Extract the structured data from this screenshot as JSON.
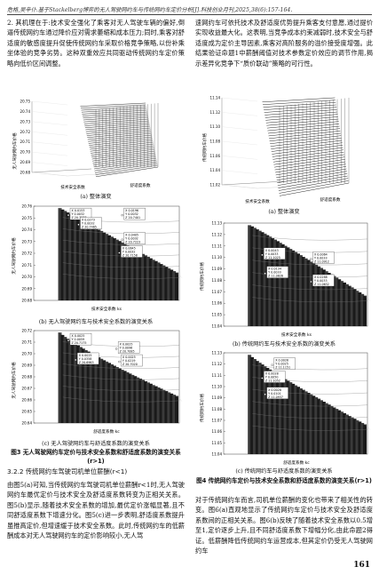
{
  "header": "危格,吴辛仆.基于Stackelberg博弈的无人驾驶网约车与传统网约车定价分析[J].科技创业月刊,2025,38(6):157-164.",
  "left_top_text": "2. 其机理在于:技术安全强化了乘客对无人驾驶车辆的偏好,倒逼传统网约车通过降价应对需求萎缩和成本压力;同时,乘客对舒适度的敏感度提升促使传统网约车采取价格竞争策略,以份补乘坐体验的竞争劣势。这种双重效应共同驱动传统网约车定价策略向低价区间调整。",
  "right_top_text": "速网约车可依托技术及舒适度优势提升乘客支付意愿,通过提价实现收益最大化。这表明,当竞争成本约束减弱时,技术安全与舒适度成为定价主导因素,乘客对高阶服务的溢价接受度增强。此结果验证命题1中薪酬阈值对技术参数定价效应的调节作用,揭示差异化竞争下“质价联动”策略的可行性。",
  "fig3": {
    "a_caption": "(a) 整体演变",
    "b_caption": "(b) 无人驾驶网约车与技术安全系数的演变关系",
    "c_caption": "(c) 无人驾驶网约车与舒适度系数的演变关系",
    "title": "图3 无人驾驶网约车定价与技术安全系数和舒适度系数的演变关系(r>1)",
    "a_ylabel": "无人驾驶网约车价格",
    "a_xlabel1": "技术安全系数",
    "a_xlabel2": "舒适度系数",
    "b_ylabel": "无人驾驶网约车价格",
    "b_xlabel": "技术安全系数 ks",
    "c_ylabel": "无人驾驶网约车价格",
    "c_xlabel": "舒适度系数 kc",
    "a_yticks": [
      "20.75",
      "20.74",
      "20.73",
      "20.72",
      "20.71",
      "20.70",
      "20.69",
      "20.68"
    ],
    "b_yticks": [
      "20.76",
      "20.75",
      "20.74",
      "20.73",
      "20.72",
      "20.71",
      "20.70",
      "20.69",
      "20.68"
    ],
    "c_yticks": [
      "20.72",
      "20.71",
      "20.70",
      "20.69",
      "20.68",
      "20.67",
      "20.66",
      "20.65",
      "20.64"
    ],
    "b_datatips": [
      {
        "x": "X 0.0153",
        "y": "Y 0.0032",
        "z": "Z 20.7377"
      },
      {
        "x": "X 0.0196",
        "y": "Y 0.0032",
        "z": "Z 20.7401"
      },
      {
        "x": "X 0.0273",
        "y": "Y 0.0032",
        "z": "Z 20.7465"
      },
      {
        "x": "X 0.0405",
        "y": "Y 0.0032",
        "z": "Z 20.7223"
      },
      {
        "x": "X 0.0645",
        "y": "Y 0.0032",
        "z": "Z 20.7158"
      }
    ],
    "c_datatips": [
      {
        "x": "X 0.0025",
        "y": "Y 0.0059",
        "z": "Z 20.7175"
      },
      {
        "x": "X 0.0025",
        "y": "Y 0.0096",
        "z": "Z 20.7085"
      },
      {
        "x": "X 0.0025",
        "y": "Y 0.0219",
        "z": "Z 20.7020"
      },
      {
        "x": "X 0.0025",
        "y": "Y 0.0358",
        "z": "Z 20.6963"
      }
    ]
  },
  "fig4": {
    "a_caption": "(a) 整体演变",
    "b_caption": "(b) 传统网约车与技术安全系数的演变关系",
    "c_caption": "(c) 传统网约车与舒适度系数的演变关系",
    "title": "图4 传统网约车定价与技术安全系数和舒适度系数的演变关系(r>1)",
    "a_ylabel": "传统网约车价格",
    "b_ylabel": "传统网约车价格",
    "c_ylabel": "传统网约车价格",
    "a_xlabel1": "技术安全系数",
    "a_xlabel2": "舒适度系数",
    "b_xlabel": "技术安全系数 ks",
    "c_xlabel": "舒适度系数 kc",
    "a_yticks": [
      "11.14",
      "11.12",
      "11.10",
      "11.08",
      "11.06",
      "11.04",
      "11.02"
    ],
    "b_yticks": [
      "11.13",
      "11.12",
      "11.11",
      "11.10",
      "11.09",
      "11.08",
      "11.07",
      "11.06",
      "11.05",
      "11.04"
    ],
    "c_yticks": [
      "11.13",
      "11.12",
      "11.11",
      "11.10",
      "11.09",
      "11.08",
      "11.07",
      "11.06",
      "11.05",
      "11.04"
    ],
    "b_datatips": [
      {
        "x": "X 0.0043",
        "y": "Y 0.0033",
        "z": "Z 11.1025"
      },
      {
        "x": "X 0.0064",
        "y": "Y 0.0033",
        "z": "Z 11.0912"
      },
      {
        "x": "X 0.0134",
        "y": "Y 0.0033",
        "z": "Z 11.0826"
      },
      {
        "x": "X 0.0288",
        "y": "Y 0.0033",
        "z": "Z 11.0632"
      }
    ],
    "c_datatips": [
      {
        "x": "X 0.0028",
        "y": "Y 0.0025",
        "z": "Z 11.1151"
      },
      {
        "x": "X 0.0028",
        "y": "Y 0.0050",
        "z": "Z 11.1052"
      },
      {
        "x": "X 0.0028",
        "y": "Y 0.0101",
        "z": "Z 11.0937"
      }
    ]
  },
  "section_heading": "3.2.2 传统网约车驾驶司机单位薪酬(r<1)",
  "left_bottom_text": "由图5(a)可知,当传统网约车驾驶司机单位薪酬r<1时,无人驾驶网约车最优定价与技术安全及舒适度系数转变为正相关关系。图5(b)显示,随着技术安全系数的增加,最优定价涨幅显著,且不同舒适度系数下增速分化。图5(c)进一步表明,舒适度系数提升虽推高定价,但增速缓于技术安全系数。此时,传统网约车的低薪酬成本对无人驾驶网约车的定价影响较小,无人驾",
  "right_bottom_text": "对于传统网约车而言,司机单位薪酬的变化也带来了相关性的转变。图6(a)直观地显示了传统网约车定价与技术安全及舒适度系数间的正相关关系。图6(b)反映了随着技术安全系数以0.5增至1,定价逐步上升,且不同舒适度系数下增幅分化,由此命题2得证。低薪酬降低传统网约车运营成本,但其定价仍受无人驾驶网约车",
  "page_number": "161"
}
